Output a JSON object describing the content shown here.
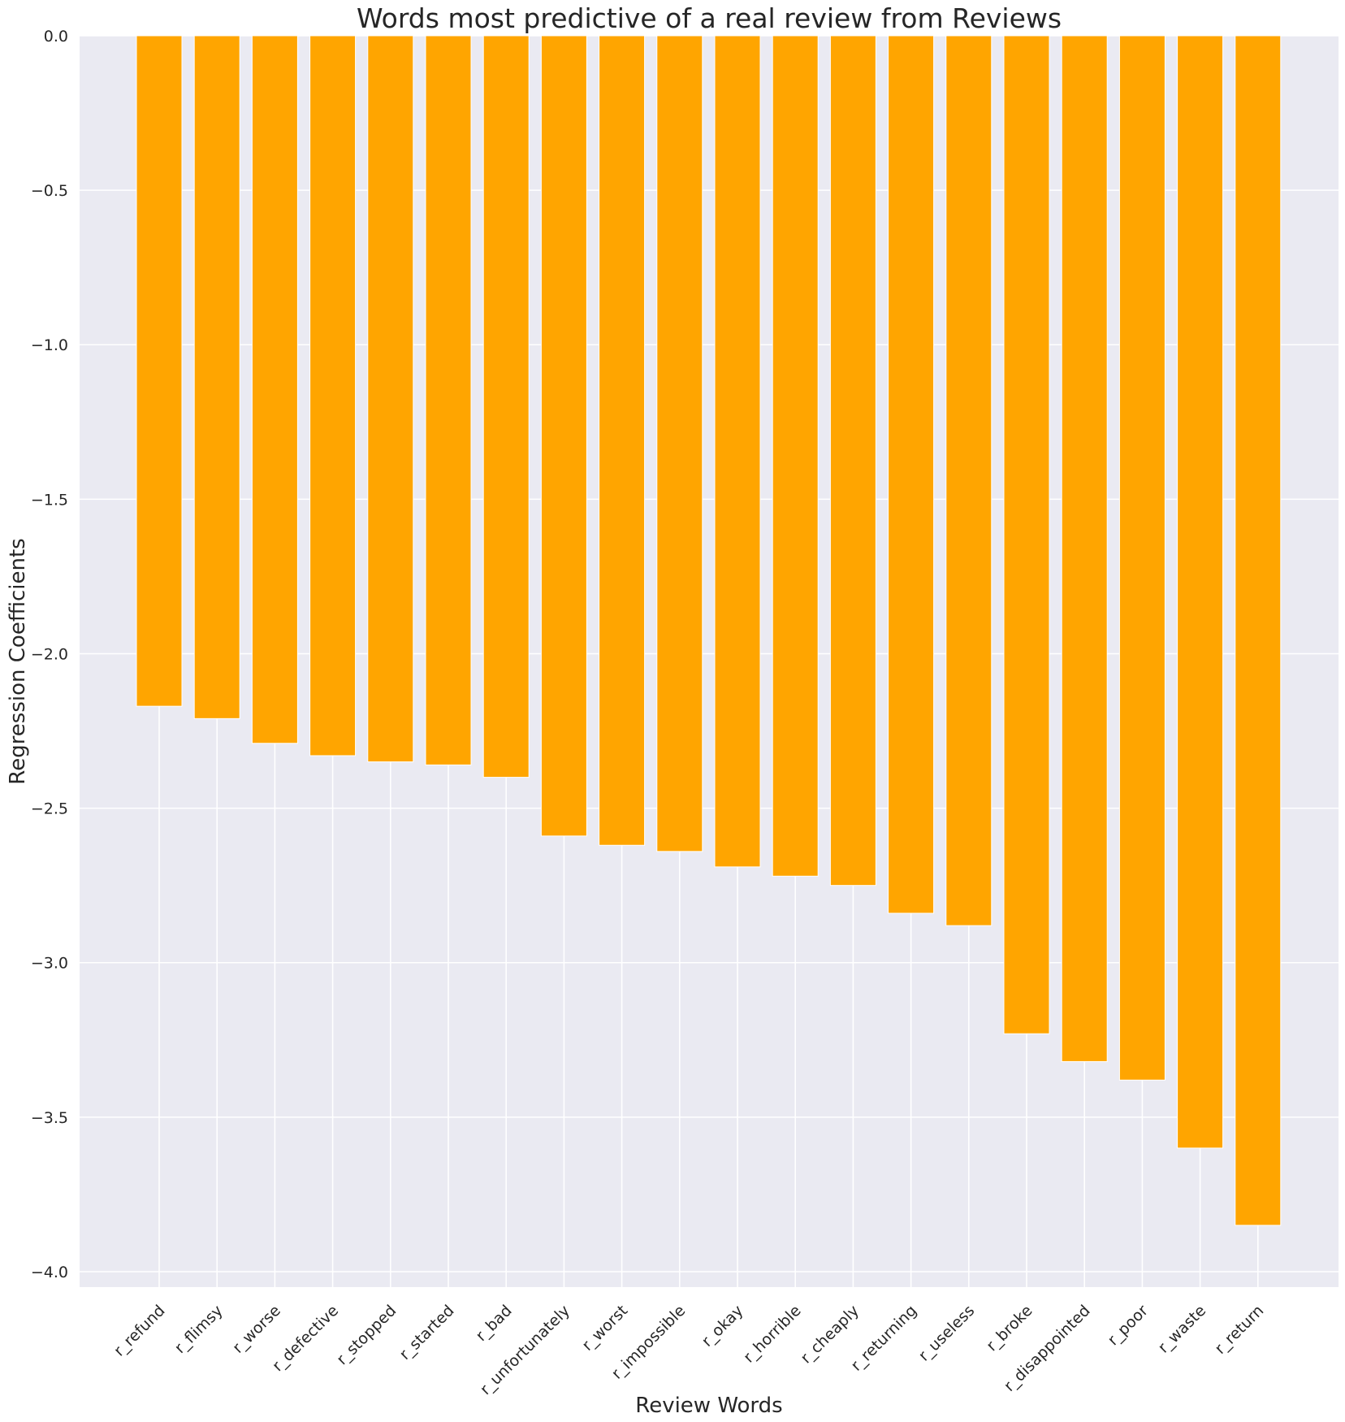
{
  "chart_data": {
    "type": "bar",
    "title": "Words most predictive of a real review from Reviews",
    "xlabel": "Review Words",
    "ylabel": "Regression Coefficients",
    "ylim": [
      -4.05,
      0.0
    ],
    "yticks": [
      0.0,
      -0.5,
      -1.0,
      -1.5,
      -2.0,
      -2.5,
      -3.0,
      -3.5,
      -4.0
    ],
    "ytick_labels": [
      "0.0",
      "−0.5",
      "−1.0",
      "−1.5",
      "−2.0",
      "−2.5",
      "−3.0",
      "−3.5",
      "−4.0"
    ],
    "grid": true,
    "categories": [
      "r_refund",
      "r_flimsy",
      "r_worse",
      "r_defective",
      "r_stopped",
      "r_started",
      "r_bad",
      "r_unfortunately",
      "r_worst",
      "r_impossible",
      "r_okay",
      "r_horrible",
      "r_cheaply",
      "r_returning",
      "r_useless",
      "r_broke",
      "r_disappointed",
      "r_poor",
      "r_waste",
      "r_return"
    ],
    "values": [
      -2.17,
      -2.21,
      -2.29,
      -2.33,
      -2.35,
      -2.36,
      -2.4,
      -2.59,
      -2.62,
      -2.64,
      -2.69,
      -2.72,
      -2.75,
      -2.84,
      -2.88,
      -3.23,
      -3.32,
      -3.38,
      -3.6,
      -3.85
    ],
    "bar_color": "#ffa500",
    "background_color": "#eaeaf2",
    "grid_color": "#ffffff"
  }
}
